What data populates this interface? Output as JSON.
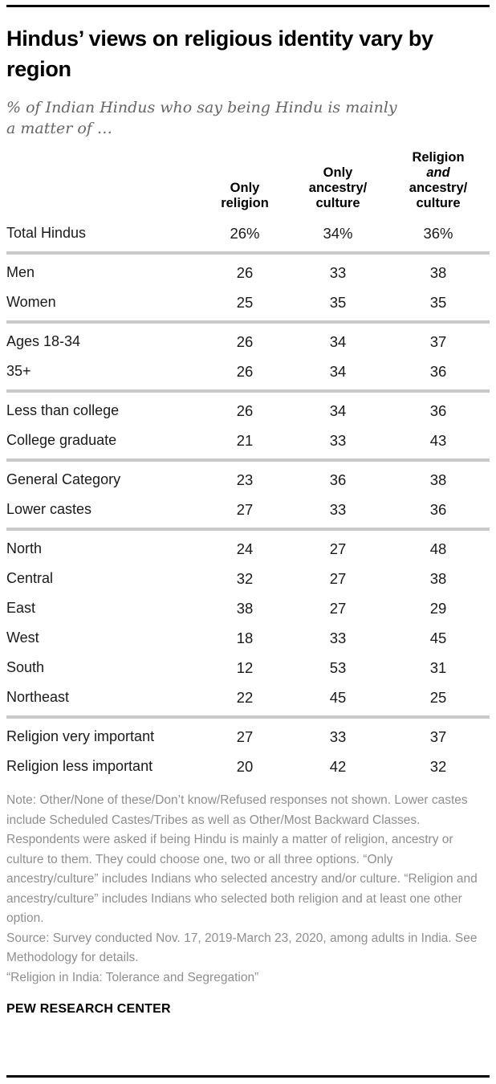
{
  "page": {
    "title": "Hindus’ views on religious identity vary by region",
    "subtitle": "% of Indian Hindus who say being Hindu is mainly a matter of …",
    "footer": "PEW RESEARCH CENTER"
  },
  "notes": {
    "note": "Note: Other/None of these/Don’t know/Refused responses not shown. Lower castes include Scheduled Castes/Tribes as well as Other/Most Backward Classes. Respondents were asked if being Hindu is mainly a matter of religion, ancestry or culture to them. They could choose one, two or all three options. “Only ancestry/culture” includes Indians who selected ancestry and/or culture. “Religion and ancestry/culture” includes Indians who selected both religion and at least one other option.",
    "source": "Source: Survey conducted Nov. 17, 2019-March 23, 2020, among adults in India. See Methodology for details.",
    "report": "“Religion in India: Tolerance and Segregation”"
  },
  "chart_data": {
    "type": "table",
    "title": "Hindus’ views on religious identity vary by region",
    "subtitle": "% of Indian Hindus who say being Hindu is mainly a matter of …",
    "column_names": [
      "Only religion",
      "Only ancestry/culture",
      "Religion and ancestry/culture"
    ],
    "columns": [
      {
        "lines": [
          {
            "text": "Only"
          },
          {
            "text": "religion"
          }
        ]
      },
      {
        "lines": [
          {
            "text": "Only"
          },
          {
            "text": "ancestry/"
          },
          {
            "text": "culture"
          }
        ]
      },
      {
        "lines": [
          {
            "text": "Religion"
          },
          {
            "text": "and",
            "italic": true
          },
          {
            "text": "ancestry/"
          },
          {
            "text": "culture"
          }
        ]
      }
    ],
    "groups": [
      [
        {
          "label": "Total Hindus",
          "values": [
            "26%",
            "34%",
            "36%"
          ]
        }
      ],
      [
        {
          "label": "Men",
          "values": [
            "26",
            "33",
            "38"
          ]
        },
        {
          "label": "Women",
          "values": [
            "25",
            "35",
            "35"
          ]
        }
      ],
      [
        {
          "label": "Ages 18-34",
          "values": [
            "26",
            "34",
            "37"
          ]
        },
        {
          "label": "35+",
          "values": [
            "26",
            "34",
            "36"
          ]
        }
      ],
      [
        {
          "label": "Less than college",
          "values": [
            "26",
            "34",
            "36"
          ]
        },
        {
          "label": "College graduate",
          "values": [
            "21",
            "33",
            "43"
          ]
        }
      ],
      [
        {
          "label": "General Category",
          "values": [
            "23",
            "36",
            "38"
          ]
        },
        {
          "label": "Lower castes",
          "values": [
            "27",
            "33",
            "36"
          ]
        }
      ],
      [
        {
          "label": "North",
          "values": [
            "24",
            "27",
            "48"
          ]
        },
        {
          "label": "Central",
          "values": [
            "32",
            "27",
            "38"
          ]
        },
        {
          "label": "East",
          "values": [
            "38",
            "27",
            "29"
          ]
        },
        {
          "label": "West",
          "values": [
            "18",
            "33",
            "45"
          ]
        },
        {
          "label": "South",
          "values": [
            "12",
            "53",
            "31"
          ]
        },
        {
          "label": "Northeast",
          "values": [
            "22",
            "45",
            "25"
          ]
        }
      ],
      [
        {
          "label": "Religion very important",
          "values": [
            "27",
            "33",
            "37"
          ]
        },
        {
          "label": "Religion less important",
          "values": [
            "20",
            "42",
            "32"
          ]
        }
      ]
    ]
  },
  "colors": {
    "rule": "#000000",
    "separator": "#c9c9c9",
    "note_gray": "#8e8e8e",
    "subtitle_gray": "#666666",
    "text": "#1a1a1a"
  }
}
